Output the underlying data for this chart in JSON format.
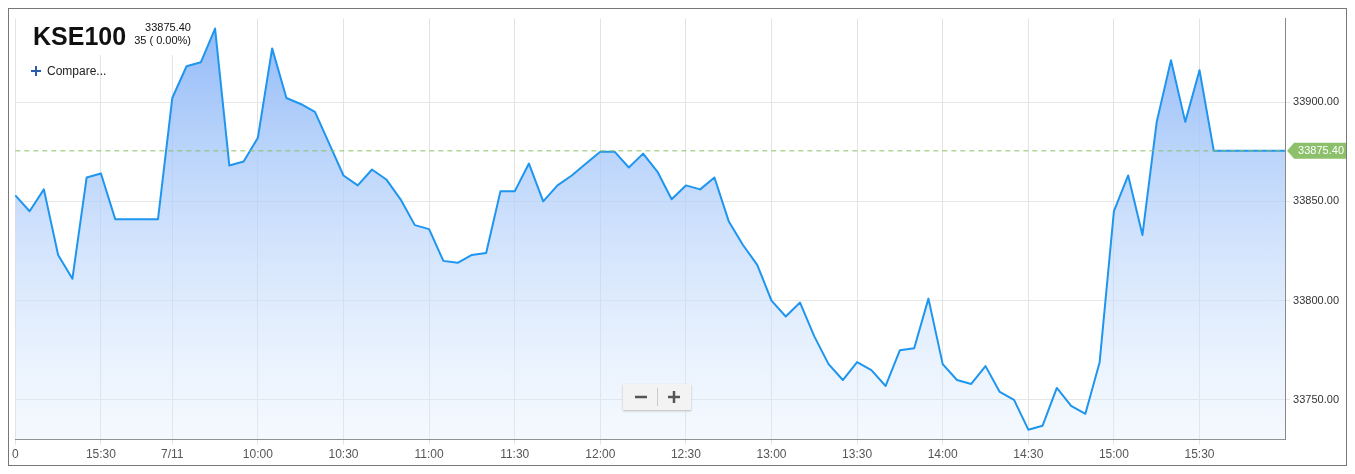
{
  "chart_data": {
    "type": "area",
    "title": "KSE100",
    "subtitle": "33875.40",
    "annotations": [
      "35 ( 0.00%)",
      "Compare..."
    ],
    "categories": [
      "0",
      null,
      null,
      null,
      null,
      null,
      "15:30",
      null,
      null,
      null,
      null,
      "7/11",
      null,
      null,
      null,
      null,
      null,
      "10:00",
      null,
      null,
      null,
      null,
      null,
      "10:30",
      null,
      null,
      null,
      null,
      null,
      "11:00",
      null,
      null,
      null,
      null,
      null,
      "11:30",
      null,
      null,
      null,
      null,
      null,
      "12:00",
      null,
      null,
      null,
      null,
      null,
      "12:30",
      null,
      null,
      null,
      null,
      null,
      "13:00",
      null,
      null,
      null,
      null,
      null,
      "13:30",
      null,
      null,
      null,
      null,
      null,
      "14:00",
      null,
      null,
      null,
      null,
      null,
      "14:30",
      null,
      null,
      null,
      null,
      null,
      "15:00",
      null,
      null,
      null,
      null,
      null,
      "15:30",
      null,
      null,
      null,
      null,
      null,
      null
    ],
    "series": [
      {
        "color": "#1e96ef",
        "values": [
          33853,
          33845,
          33856,
          33823,
          33811,
          33862,
          33864,
          33841,
          33841,
          33841,
          33841,
          33902,
          33918,
          33920,
          33937,
          33868,
          33870,
          33882,
          33927,
          33902,
          33899,
          33895,
          33879,
          33863,
          33858,
          33866,
          33861,
          33851,
          33838,
          33836,
          33820,
          33819,
          33823,
          33824,
          33855,
          33855,
          33869,
          33850,
          33858,
          33863,
          33869,
          33875,
          33875,
          33867,
          33874,
          33865,
          33851,
          33858,
          33856,
          33862,
          33840,
          33828,
          33818,
          33800,
          33792,
          33799,
          33782,
          33768,
          33760,
          33769,
          33765,
          33757,
          33775,
          33776,
          33801,
          33768,
          33760,
          33758,
          33767,
          33754,
          33750,
          33735,
          33737,
          33756,
          33747,
          33743,
          33769,
          33845,
          33863,
          33833,
          33890,
          33921,
          33890,
          33916,
          33875.4,
          33875.4,
          33875.4,
          33875.4,
          33875.4,
          33875.4
        ]
      }
    ],
    "ylim": [
      33730,
      33942
    ],
    "yticks": [
      {
        "value": 33750,
        "label": "33750.00"
      },
      {
        "value": 33800,
        "label": "33800.00"
      },
      {
        "value": 33850,
        "label": "33850.00"
      },
      {
        "value": 33900,
        "label": "33900.00"
      }
    ],
    "ref_lines": [
      {
        "axis": "y",
        "value": 33875.4,
        "label": "33875.40",
        "color": "#8cc06a",
        "line_style": "dashed"
      }
    ],
    "grid": true,
    "legend": false,
    "marker": "none",
    "line_style": "solid"
  }
}
